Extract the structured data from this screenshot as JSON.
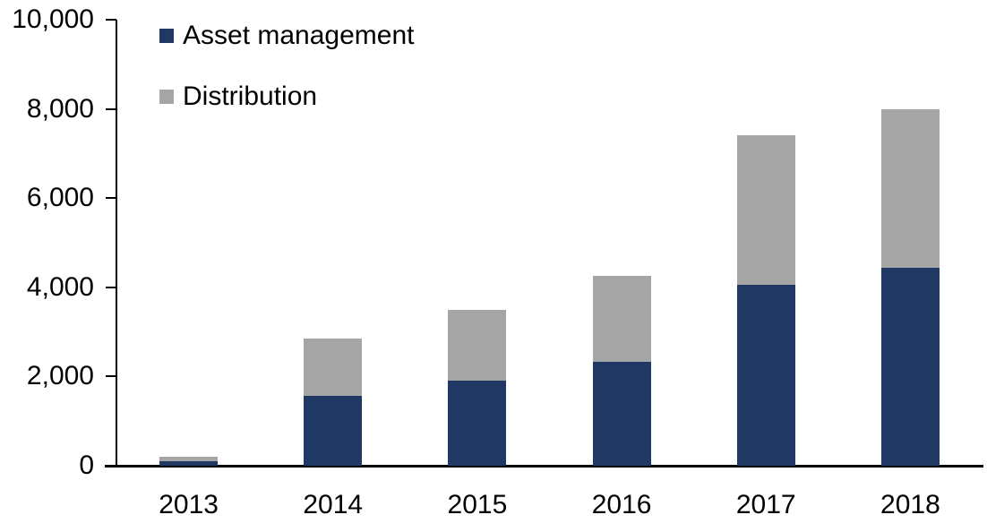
{
  "chart_data": {
    "type": "bar",
    "stacked": true,
    "title": "",
    "xlabel": "",
    "ylabel": "",
    "categories": [
      "2013",
      "2014",
      "2015",
      "2016",
      "2017",
      "2018"
    ],
    "series": [
      {
        "name": "Asset management",
        "color": "#1f3864",
        "values": [
          100,
          1560,
          1900,
          2330,
          4050,
          4440
        ]
      },
      {
        "name": "Distribution",
        "color": "#a5a5a5",
        "values": [
          100,
          1290,
          1600,
          1920,
          3350,
          3560
        ]
      }
    ],
    "totals": [
      200,
      2850,
      3500,
      4250,
      7400,
      8000
    ],
    "ylim": [
      0,
      10000
    ],
    "yticks": [
      0,
      2000,
      4000,
      6000,
      8000,
      10000
    ],
    "ytick_labels": [
      "0",
      "2,000",
      "4,000",
      "6,000",
      "8,000",
      "10,000"
    ],
    "grid": false,
    "legend_position": "top-left",
    "axis_color": "#000000"
  }
}
